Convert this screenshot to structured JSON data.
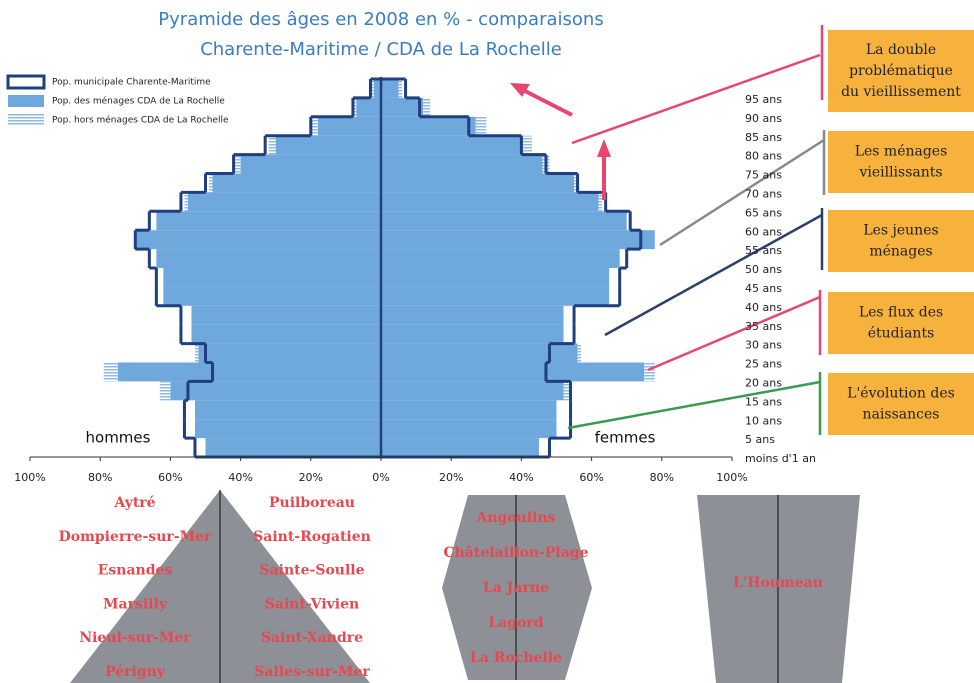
{
  "chart_data": {
    "type": "pyramid",
    "title": [
      "Pyramide des âges en 2008 en % - comparaisons",
      "Charente-Maritime / CDA de La Rochelle"
    ],
    "bins": [
      0,
      5,
      10,
      15,
      20,
      25,
      30,
      35,
      40,
      45,
      50,
      55,
      60,
      65,
      70,
      75,
      80,
      85,
      90,
      95,
      100
    ],
    "left_label": "hommes",
    "right_label": "femmes",
    "xlim": [
      -100,
      100
    ],
    "xticks": [
      {
        "value": -100,
        "label": "100%"
      },
      {
        "value": -80,
        "label": "80%"
      },
      {
        "value": -60,
        "label": "60%"
      },
      {
        "value": -40,
        "label": "40%"
      },
      {
        "value": -20,
        "label": "20%"
      },
      {
        "value": 0,
        "label": "0%"
      },
      {
        "value": 20,
        "label": "20%"
      },
      {
        "value": 40,
        "label": "40%"
      },
      {
        "value": 60,
        "label": "60%"
      },
      {
        "value": 80,
        "label": "80%"
      },
      {
        "value": 100,
        "label": "100%"
      }
    ],
    "age_labels": [
      "95 ans",
      "90 ans",
      "85 ans",
      "80 ans",
      "75 ans",
      "70 ans",
      "65 ans",
      "60 ans",
      "55 ans",
      "50 ans",
      "45 ans",
      "40 ans",
      "35 ans",
      "30 ans",
      "25 ans",
      "20 ans",
      "15 ans",
      "10 ans",
      "5 ans",
      "moins d'1 an"
    ],
    "series": [
      {
        "name": "Pop. municipale Charente-Maritime",
        "color": "#1f3f7f",
        "hommes": [
          53,
          56,
          56,
          55,
          48,
          50,
          57,
          57,
          64,
          64,
          66,
          70,
          66,
          57,
          50,
          42,
          33,
          20,
          8,
          3
        ],
        "femmes": [
          48,
          54,
          54,
          54,
          47,
          48,
          55,
          55,
          68,
          68,
          70,
          74,
          71,
          64,
          56,
          47,
          40,
          25,
          11,
          7
        ]
      },
      {
        "name": "Pop. des ménages CDA de La Rochelle",
        "color": "#6fa8dc",
        "hommes": [
          50,
          53,
          53,
          60,
          75,
          52,
          54,
          54,
          62,
          62,
          64,
          70,
          64,
          55,
          48,
          40,
          30,
          18,
          7,
          2
        ],
        "femmes": [
          45,
          50,
          50,
          52,
          75,
          56,
          52,
          52,
          65,
          65,
          68,
          78,
          70,
          62,
          55,
          46,
          40,
          27,
          12,
          5
        ]
      },
      {
        "name": "Pop. hors ménages CDA de La Rochelle",
        "color": "#a9c9ea",
        "hommes": [
          0,
          0,
          0,
          3,
          4,
          1,
          0,
          0,
          0,
          0,
          0,
          0,
          0,
          1,
          1,
          2,
          2,
          2,
          1,
          1
        ],
        "femmes": [
          0,
          0,
          0,
          2,
          3,
          1,
          0,
          0,
          0,
          0,
          0,
          0,
          0,
          1,
          1,
          2,
          3,
          3,
          2,
          1
        ]
      }
    ]
  },
  "annotations": [
    {
      "lines": [
        "La double",
        "problématique",
        "du vieillissement"
      ]
    },
    {
      "lines": [
        "Les ménages",
        "vieillissants"
      ]
    },
    {
      "lines": [
        "Les jeunes",
        "ménages"
      ]
    },
    {
      "lines": [
        "Les flux des",
        "étudiants"
      ]
    },
    {
      "lines": [
        "L'évolution des",
        "naissances"
      ]
    }
  ],
  "communes": {
    "triangle_left": [
      "Aytré",
      "Dompierre-sur-Mer",
      "Esnandes",
      "Marsilly",
      "Nieul-sur-Mer",
      "Périgny"
    ],
    "triangle_right": [
      "Puilboreau",
      "Saint-Rogatien",
      "Sainte-Soulle",
      "Saint-Vivien",
      "Saint-Xandre",
      "Salles-sur-Mer"
    ],
    "hexagon": [
      "Angoulins",
      "Châtelaillon-Plage",
      "La Jarne",
      "Lagord",
      "La Rochelle"
    ],
    "trapeze": [
      "L'Houmeau"
    ]
  }
}
